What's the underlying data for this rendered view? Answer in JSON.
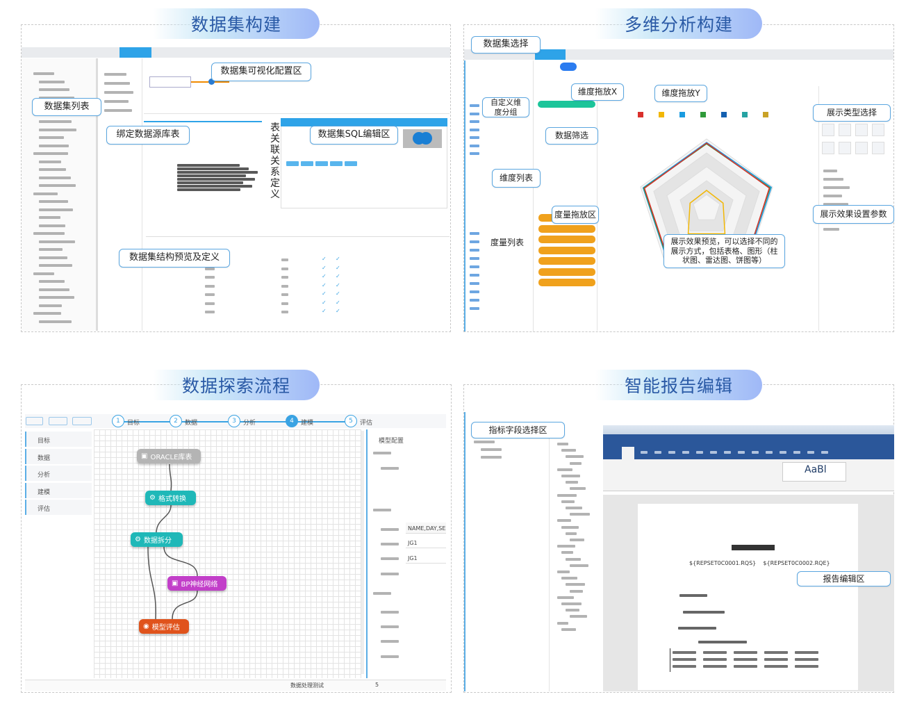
{
  "sections": {
    "dataset": {
      "title": "数据集构建",
      "callouts": {
        "visual_config": "数据集可视化配置区",
        "dataset_list": "数据集列表",
        "bind_source": "绑定数据源库表",
        "sql_editor": "数据集SQL编辑区",
        "table_relation": "表关联关系定义",
        "structure_preview": "数据集结构预览及定义"
      }
    },
    "multidim": {
      "title": "多维分析构建",
      "callouts": {
        "dataset_select": "数据集选择",
        "custom_group": "自定义维度分组",
        "drop_x": "维度拖放X",
        "drop_y": "维度拖放Y",
        "filter": "数据筛选",
        "chart_type": "展示类型选择",
        "dimension_list": "维度列表",
        "measure_drop": "度量拖放区",
        "measure_list": "度量列表",
        "preview": "展示效果预览，可以选择不同的展示方式，包括表格、图形（柱状图、雷达图、饼图等）",
        "settings": "展示效果设置参数"
      },
      "legend_colors": [
        "#d9302c",
        "#f2b705",
        "#1a9be0",
        "#2f9a3a",
        "#1560b0",
        "#26a3a3",
        "#c9a227"
      ],
      "radar_series": [
        {
          "color": "#1a9be0",
          "values": [
            0.95,
            0.98,
            0.97,
            0.95,
            0.96
          ]
        },
        {
          "color": "#2f9a3a",
          "values": [
            0.93,
            0.96,
            0.95,
            0.94,
            0.95
          ]
        },
        {
          "color": "#d9302c",
          "values": [
            0.94,
            0.95,
            0.96,
            0.93,
            0.94
          ]
        },
        {
          "color": "#f2b705",
          "values": [
            0.26,
            0.25,
            0.45,
            0.45,
            0.25
          ]
        }
      ]
    },
    "explore": {
      "title": "数据探索流程",
      "steps": [
        {
          "num": "1",
          "label": "目标"
        },
        {
          "num": "2",
          "label": "数据"
        },
        {
          "num": "3",
          "label": "分析"
        },
        {
          "num": "4",
          "label": "建模"
        },
        {
          "num": "5",
          "label": "评估"
        }
      ],
      "active_step": 4,
      "side_items": [
        "目标",
        "数据",
        "分析",
        "建模",
        "评估"
      ],
      "nodes": {
        "oracle": "ORACLE库表",
        "format": "格式转换",
        "split": "数据拆分",
        "bp": "BP神经网络",
        "eval": "模型评估"
      },
      "config": {
        "header": "模型配置",
        "field_value_1": "NAME,DAY,SEX",
        "field_value_2": "JG1",
        "field_value_3": "JG1"
      },
      "status": {
        "name": "数据处理测试",
        "count": "5"
      }
    },
    "report": {
      "title": "智能报告编辑",
      "callouts": {
        "field_select": "指标字段选择区",
        "editor": "报告编辑区"
      },
      "style_sample": "AaBl",
      "doc_vars": "${REPSET0C0001.RQS}    ${REPSET0C0002.RQE}"
    }
  },
  "colors": {
    "accent": "#2ea3e8",
    "title_text": "#2a5aa6",
    "callout_border": "#5aa6e0",
    "word_ribbon": "#2b579a",
    "node_gray": "#b4b4b4",
    "node_teal": "#1fb8b8",
    "node_magenta": "#c23fc9",
    "node_orange": "#e0531c",
    "measure_orange": "#f0a11c",
    "dim_green": "#1cc59a"
  }
}
